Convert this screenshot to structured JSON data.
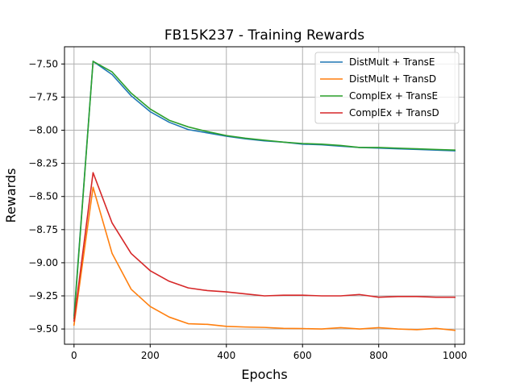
{
  "chart_data": {
    "type": "line",
    "title": "FB15K237 - Training Rewards",
    "xlabel": "Epochs",
    "ylabel": "Rewards",
    "xlim": [
      -25,
      1025
    ],
    "ylim": [
      -9.615,
      -7.37
    ],
    "xticks": [
      0,
      200,
      400,
      600,
      800,
      1000
    ],
    "xtick_labels": [
      "0",
      "200",
      "400",
      "600",
      "800",
      "1000"
    ],
    "yticks": [
      -7.5,
      -7.75,
      -8.0,
      -8.25,
      -8.5,
      -8.75,
      -9.0,
      -9.25,
      -9.5
    ],
    "ytick_labels": [
      "−7.50",
      "−7.75",
      "−8.00",
      "−8.25",
      "−8.50",
      "−8.75",
      "−9.00",
      "−9.25",
      "−9.50"
    ],
    "grid": true,
    "legend_position": "top-right",
    "x": [
      0,
      50,
      100,
      150,
      200,
      250,
      300,
      350,
      400,
      450,
      500,
      550,
      600,
      650,
      700,
      750,
      800,
      850,
      900,
      950,
      1000
    ],
    "series": [
      {
        "name": "DistMult + TransE",
        "color": "#1f77b4",
        "values": [
          -9.4,
          -7.48,
          -7.58,
          -7.74,
          -7.86,
          -7.94,
          -7.995,
          -8.02,
          -8.045,
          -8.065,
          -8.08,
          -8.09,
          -8.105,
          -8.11,
          -8.12,
          -8.13,
          -8.135,
          -8.14,
          -8.145,
          -8.15,
          -8.155
        ]
      },
      {
        "name": "DistMult + TransD",
        "color": "#ff7f0e",
        "values": [
          -9.47,
          -8.43,
          -8.93,
          -9.2,
          -9.33,
          -9.41,
          -9.46,
          -9.465,
          -9.48,
          -9.485,
          -9.488,
          -9.495,
          -9.497,
          -9.5,
          -9.49,
          -9.5,
          -9.49,
          -9.5,
          -9.505,
          -9.495,
          -9.51
        ]
      },
      {
        "name": "ComplEx + TransE",
        "color": "#2ca02c",
        "values": [
          -9.42,
          -7.48,
          -7.56,
          -7.72,
          -7.84,
          -7.925,
          -7.975,
          -8.01,
          -8.04,
          -8.06,
          -8.075,
          -8.09,
          -8.1,
          -8.105,
          -8.115,
          -8.13,
          -8.13,
          -8.135,
          -8.14,
          -8.145,
          -8.15
        ]
      },
      {
        "name": "ComplEx + TransD",
        "color": "#d62728",
        "values": [
          -9.44,
          -8.32,
          -8.7,
          -8.93,
          -9.06,
          -9.14,
          -9.19,
          -9.21,
          -9.22,
          -9.235,
          -9.25,
          -9.245,
          -9.245,
          -9.25,
          -9.25,
          -9.24,
          -9.26,
          -9.255,
          -9.255,
          -9.26,
          -9.26
        ]
      }
    ]
  }
}
